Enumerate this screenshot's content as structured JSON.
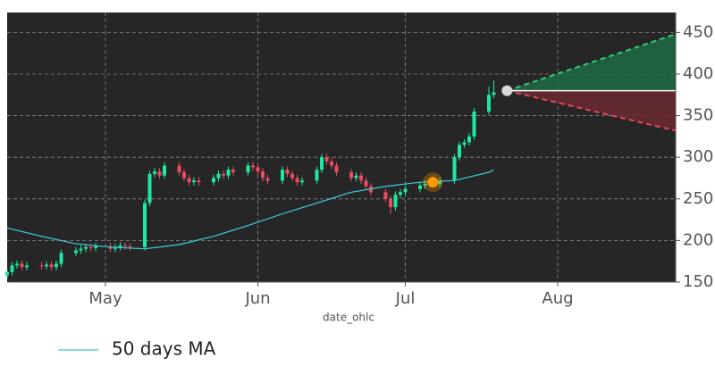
{
  "chart_data": {
    "type": "candlestick",
    "xlabel": "date_ohlc",
    "xlim": [
      0,
      136
    ],
    "ylim": [
      150,
      474
    ],
    "xticks": [
      {
        "value": 20,
        "label": "May"
      },
      {
        "value": 51,
        "label": "Jun"
      },
      {
        "value": 81,
        "label": "Jul"
      },
      {
        "value": 112,
        "label": "Aug"
      }
    ],
    "yticks": [
      150,
      200,
      250,
      300,
      350,
      400,
      450
    ],
    "grid": true,
    "background": "#262626",
    "candles": {
      "up_color": "#1de9a0",
      "down_color": "#ea4c63",
      "x": [
        0,
        1,
        2,
        3,
        4,
        7,
        8,
        9,
        10,
        11,
        14,
        15,
        16,
        17,
        18,
        21,
        22,
        23,
        24,
        25,
        28,
        29,
        30,
        31,
        32,
        35,
        36,
        37,
        38,
        39,
        42,
        43,
        44,
        45,
        46,
        49,
        50,
        51,
        52,
        53,
        56,
        57,
        58,
        59,
        60,
        63,
        64,
        65,
        66,
        67,
        70,
        71,
        72,
        73,
        74,
        77,
        78,
        79,
        80,
        81,
        84,
        85,
        86,
        87,
        88,
        91,
        92,
        93,
        94,
        95,
        98,
        99
      ],
      "open": [
        158,
        162,
        170,
        172,
        168,
        170,
        169,
        171,
        168,
        172,
        185,
        188,
        190,
        192,
        191,
        193,
        190,
        192,
        194,
        193,
        192,
        245,
        280,
        283,
        278,
        290,
        282,
        275,
        270,
        272,
        270,
        275,
        280,
        278,
        285,
        282,
        290,
        288,
        283,
        275,
        272,
        285,
        280,
        275,
        270,
        272,
        285,
        300,
        295,
        290,
        282,
        275,
        278,
        272,
        265,
        258,
        250,
        240,
        255,
        258,
        262,
        266,
        268,
        270,
        268,
        272,
        300,
        315,
        318,
        325,
        355,
        375
      ],
      "high": [
        166,
        174,
        176,
        176,
        174,
        174,
        175,
        175,
        176,
        189,
        192,
        194,
        196,
        196,
        197,
        197,
        196,
        198,
        198,
        197,
        249,
        284,
        287,
        287,
        294,
        294,
        286,
        279,
        276,
        276,
        279,
        284,
        284,
        289,
        289,
        294,
        294,
        292,
        287,
        279,
        289,
        289,
        284,
        279,
        276,
        289,
        304,
        304,
        299,
        294,
        286,
        282,
        282,
        276,
        269,
        262,
        254,
        259,
        262,
        266,
        270,
        272,
        274,
        274,
        276,
        304,
        319,
        322,
        329,
        359,
        385,
        392
      ],
      "low": [
        154,
        158,
        166,
        164,
        164,
        165,
        165,
        164,
        164,
        168,
        181,
        184,
        186,
        187,
        187,
        186,
        186,
        188,
        189,
        188,
        188,
        241,
        276,
        274,
        274,
        278,
        271,
        266,
        266,
        266,
        266,
        271,
        274,
        274,
        278,
        278,
        284,
        279,
        271,
        268,
        268,
        276,
        271,
        266,
        266,
        268,
        281,
        291,
        286,
        278,
        271,
        271,
        268,
        261,
        254,
        246,
        232,
        236,
        251,
        254,
        258,
        262,
        264,
        264,
        264,
        268,
        296,
        311,
        314,
        321,
        351,
        371
      ],
      "close": [
        162,
        170,
        172,
        168,
        170,
        169,
        171,
        168,
        172,
        185,
        188,
        190,
        192,
        191,
        193,
        190,
        192,
        194,
        193,
        192,
        245,
        280,
        283,
        278,
        290,
        282,
        275,
        270,
        272,
        270,
        275,
        280,
        278,
        285,
        282,
        290,
        288,
        283,
        275,
        272,
        285,
        280,
        275,
        270,
        272,
        285,
        300,
        295,
        290,
        282,
        275,
        278,
        272,
        265,
        258,
        250,
        240,
        255,
        258,
        262,
        266,
        268,
        270,
        268,
        272,
        300,
        315,
        318,
        325,
        355,
        375,
        378
      ]
    },
    "series": [
      {
        "name": "50 days MA",
        "color": "#3ec1d3",
        "x": [
          0,
          7,
          14,
          21,
          28,
          35,
          42,
          49,
          56,
          63,
          70,
          77,
          84,
          91,
          98,
          99
        ],
        "values": [
          215,
          205,
          196,
          192,
          190,
          195,
          205,
          218,
          232,
          245,
          258,
          265,
          270,
          272,
          282,
          285
        ]
      }
    ],
    "signal": {
      "x": 86.6,
      "y": 270,
      "color": "#ff9800"
    },
    "forecast": {
      "x": [
        101.7,
        136
      ],
      "start": 380,
      "upper": 448,
      "lower": 332,
      "start_color": "#d9d9d9",
      "up_color": "#2ecc71",
      "down_color": "#e8445a"
    }
  }
}
